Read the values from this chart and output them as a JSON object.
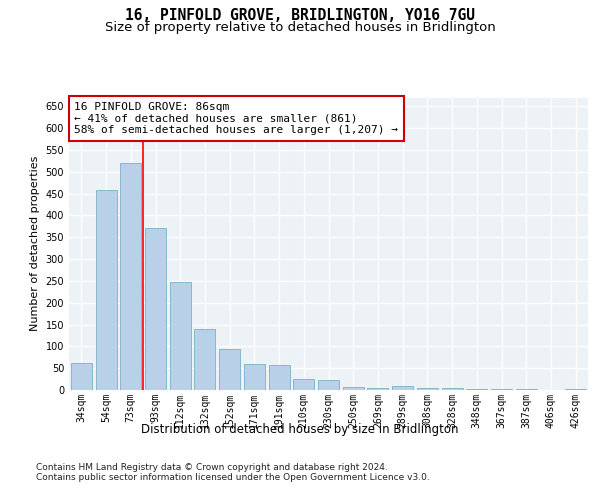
{
  "title1": "16, PINFOLD GROVE, BRIDLINGTON, YO16 7GU",
  "title2": "Size of property relative to detached houses in Bridlington",
  "xlabel": "Distribution of detached houses by size in Bridlington",
  "ylabel": "Number of detached properties",
  "bar_labels": [
    "34sqm",
    "54sqm",
    "73sqm",
    "93sqm",
    "112sqm",
    "132sqm",
    "152sqm",
    "171sqm",
    "191sqm",
    "210sqm",
    "230sqm",
    "250sqm",
    "269sqm",
    "289sqm",
    "308sqm",
    "328sqm",
    "348sqm",
    "367sqm",
    "387sqm",
    "406sqm",
    "426sqm"
  ],
  "bar_values": [
    62,
    458,
    521,
    370,
    247,
    140,
    93,
    60,
    57,
    25,
    24,
    8,
    5,
    10,
    5,
    5,
    3,
    2,
    2,
    1,
    2
  ],
  "bar_color": "#b8d0e8",
  "bar_edgecolor": "#7aafc8",
  "background_color": "#edf2f7",
  "grid_color": "#ffffff",
  "annotation_line1": "16 PINFOLD GROVE: 86sqm",
  "annotation_line2": "← 41% of detached houses are smaller (861)",
  "annotation_line3": "58% of semi-detached houses are larger (1,207) →",
  "annotation_box_color": "#ffffff",
  "annotation_box_edgecolor": "#cc0000",
  "ylim": [
    0,
    670
  ],
  "yticks": [
    0,
    50,
    100,
    150,
    200,
    250,
    300,
    350,
    400,
    450,
    500,
    550,
    600,
    650
  ],
  "footnote": "Contains HM Land Registry data © Crown copyright and database right 2024.\nContains public sector information licensed under the Open Government Licence v3.0.",
  "title1_fontsize": 10.5,
  "title2_fontsize": 9.5,
  "xlabel_fontsize": 8.5,
  "ylabel_fontsize": 8,
  "annot_fontsize": 8,
  "tick_fontsize": 7,
  "footnote_fontsize": 6.5
}
